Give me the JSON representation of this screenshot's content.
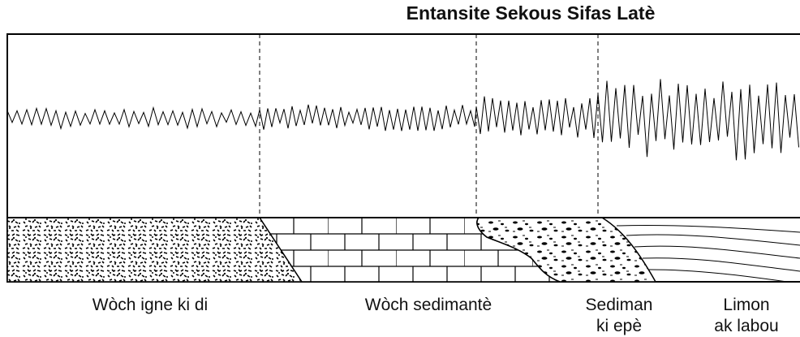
{
  "header": {
    "title": "Entansite Sekous Sifas Latè"
  },
  "labels": [
    [
      "Wòch igne ki di"
    ],
    [
      "Wòch sedimantè"
    ],
    [
      "Sediman",
      "ki epè"
    ],
    [
      "Limon",
      "ak labou"
    ]
  ]
}
